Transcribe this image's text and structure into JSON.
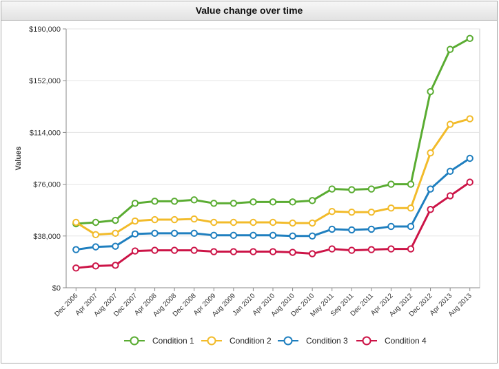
{
  "chart_data": {
    "type": "line",
    "title": "Value change over time",
    "xlabel": "",
    "ylabel": "Values",
    "ylim": [
      0,
      190000
    ],
    "yticks": [
      0,
      38000,
      76000,
      114000,
      152000,
      190000
    ],
    "ytick_labels": [
      "$0",
      "$38,000",
      "$76,000",
      "$114,000",
      "$152,000",
      "$190,000"
    ],
    "categories": [
      "Dec 2006",
      "Apr 2007",
      "Aug 2007",
      "Dec 2007",
      "Apr 2008",
      "Aug 2008",
      "Dec 2008",
      "Apr 2009",
      "Aug 2009",
      "Jan 2010",
      "Apr 2010",
      "Aug 2010",
      "Dec 2010",
      "May 2011",
      "Sep 2011",
      "Dec 2011",
      "Apr 2012",
      "Aug 2012",
      "Dec 2012",
      "Apr 2013",
      "Aug 2013"
    ],
    "grid": true,
    "legend_position": "bottom",
    "series": [
      {
        "name": "Condition 1",
        "color": "#5aac32",
        "values": [
          47000,
          48000,
          49500,
          62000,
          63500,
          63500,
          64500,
          62000,
          62000,
          63000,
          63000,
          63000,
          64000,
          72500,
          72000,
          72500,
          76000,
          76000,
          144000,
          175000,
          183000
        ]
      },
      {
        "name": "Condition 2",
        "color": "#f2bb2a",
        "values": [
          48000,
          39000,
          40000,
          49000,
          50000,
          50000,
          50500,
          48000,
          48000,
          48000,
          48000,
          47500,
          47500,
          56000,
          55500,
          55500,
          58500,
          58500,
          99000,
          120000,
          124000
        ]
      },
      {
        "name": "Condition 3",
        "color": "#1f7fbf",
        "values": [
          28000,
          30000,
          30500,
          39500,
          40000,
          40000,
          40000,
          38500,
          38500,
          38500,
          38500,
          38000,
          38000,
          43000,
          42500,
          43000,
          45000,
          45000,
          72500,
          85500,
          95000
        ]
      },
      {
        "name": "Condition 4",
        "color": "#cc1447",
        "values": [
          14500,
          16000,
          16500,
          27000,
          27500,
          27500,
          27500,
          26500,
          26500,
          26500,
          26500,
          26000,
          25000,
          28500,
          27500,
          28000,
          28500,
          28500,
          57500,
          67500,
          77500
        ]
      }
    ]
  }
}
